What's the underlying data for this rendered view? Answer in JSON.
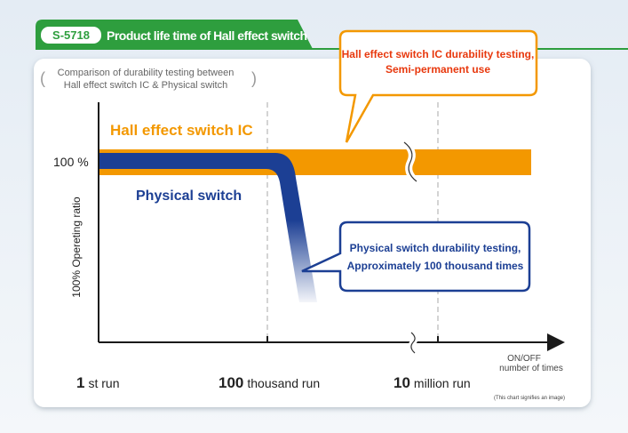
{
  "header": {
    "badge": "S-5718",
    "title": "Product life time of Hall effect switch"
  },
  "panel": {
    "subtitle": [
      "Comparison of durability testing between",
      "Hall effect switch IC & Physical switch"
    ],
    "y_axis_label": "100% Opereting ratio",
    "y_level_label": "100 %",
    "hall_label": "Hall effect switch IC",
    "physical_label": "Physical switch",
    "x_axis_label": [
      "ON/OFF",
      "number of times"
    ],
    "x_ticks": [
      {
        "number": "1",
        "unit": "st run"
      },
      {
        "number": "100",
        "unit": "thousand run"
      },
      {
        "number": "10",
        "unit": "million run"
      }
    ],
    "note": "(This chart signifies an image)"
  },
  "callouts": {
    "hall": [
      "Hall effect switch IC durability testing,",
      "Semi-permanent use"
    ],
    "physical": [
      "Physical switch durability testing,",
      "Approximately 100 thousand times"
    ]
  }
}
